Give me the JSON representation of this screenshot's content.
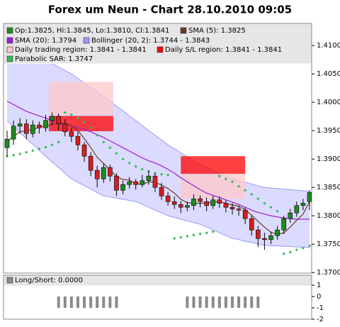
{
  "chart_data": [
    {
      "type": "candlestick",
      "title": "Forex um Neun - Chart 28.10.2010 09:05",
      "legend_label": "Op:1.3825, Hi:1.3845, Lo:1.3810, Cl:1.3841",
      "up_color": "#1f8a1f",
      "down_color": "#d42020",
      "open": [
        1.392,
        1.3935,
        1.3958,
        1.3962,
        1.3945,
        1.396,
        1.3955,
        1.3968,
        1.3975,
        1.3962,
        1.3948,
        1.394,
        1.3925,
        1.3905,
        1.388,
        1.3865,
        1.3885,
        1.387,
        1.3845,
        1.3855,
        1.386,
        1.3855,
        1.3862,
        1.387,
        1.385,
        1.3835,
        1.3825,
        1.382,
        1.3815,
        1.3818,
        1.383,
        1.3825,
        1.3818,
        1.3828,
        1.3822,
        1.3815,
        1.3812,
        1.381,
        1.3795,
        1.3775,
        1.376,
        1.3758,
        1.3765,
        1.3775,
        1.3795,
        1.3805,
        1.3818,
        1.3825
      ],
      "high": [
        1.395,
        1.3968,
        1.3972,
        1.397,
        1.3968,
        1.3966,
        1.3978,
        1.3982,
        1.398,
        1.397,
        1.3955,
        1.3948,
        1.393,
        1.3912,
        1.3888,
        1.3892,
        1.389,
        1.3875,
        1.3862,
        1.3868,
        1.3865,
        1.3872,
        1.388,
        1.3875,
        1.3858,
        1.3842,
        1.3834,
        1.3826,
        1.3825,
        1.3838,
        1.3836,
        1.3832,
        1.3835,
        1.3834,
        1.3828,
        1.3822,
        1.3818,
        1.3815,
        1.38,
        1.3782,
        1.377,
        1.3772,
        1.3782,
        1.38,
        1.3812,
        1.3825,
        1.383,
        1.3845
      ],
      "low": [
        1.3905,
        1.3925,
        1.3945,
        1.3935,
        1.3938,
        1.3945,
        1.3948,
        1.396,
        1.395,
        1.394,
        1.393,
        1.3915,
        1.3895,
        1.387,
        1.385,
        1.3858,
        1.386,
        1.3835,
        1.3838,
        1.3848,
        1.3846,
        1.385,
        1.3855,
        1.3842,
        1.3828,
        1.3818,
        1.3812,
        1.3805,
        1.3808,
        1.381,
        1.3815,
        1.3808,
        1.3812,
        1.3814,
        1.3806,
        1.3802,
        1.38,
        1.3785,
        1.3765,
        1.3745,
        1.374,
        1.375,
        1.3758,
        1.3768,
        1.3788,
        1.3798,
        1.381,
        1.381
      ],
      "close": [
        1.3935,
        1.3958,
        1.3962,
        1.3945,
        1.396,
        1.3955,
        1.3968,
        1.3975,
        1.3962,
        1.3948,
        1.394,
        1.3925,
        1.3905,
        1.388,
        1.3865,
        1.3885,
        1.387,
        1.3845,
        1.3855,
        1.386,
        1.3855,
        1.3862,
        1.387,
        1.385,
        1.3835,
        1.3825,
        1.382,
        1.3815,
        1.3818,
        1.383,
        1.3825,
        1.3818,
        1.3828,
        1.3822,
        1.3815,
        1.3812,
        1.381,
        1.3795,
        1.3775,
        1.376,
        1.3758,
        1.3765,
        1.3775,
        1.3795,
        1.3805,
        1.3818,
        1.3822,
        1.3841
      ],
      "series": [
        {
          "name": "Bollinger (20, 2): 1.3744 - 1.3843",
          "type": "band",
          "color": "#9999ff",
          "upper": [
            1.409,
            1.4088,
            1.4086,
            1.4084,
            1.4082,
            1.408,
            1.4074,
            1.4068,
            1.4062,
            1.4056,
            1.405,
            1.4042,
            1.4034,
            1.4026,
            1.4018,
            1.401,
            1.4002,
            1.3993,
            1.3985,
            1.3976,
            1.3968,
            1.3959,
            1.395,
            1.3942,
            1.3934,
            1.3925,
            1.3918,
            1.3911,
            1.3904,
            1.3897,
            1.389,
            1.3885,
            1.388,
            1.3875,
            1.387,
            1.3865,
            1.3862,
            1.3859,
            1.3856,
            1.3853,
            1.385,
            1.3849,
            1.3848,
            1.3847,
            1.3846,
            1.3845,
            1.3844,
            1.3843
          ],
          "lower": [
            1.3968,
            1.3957,
            1.3947,
            1.3936,
            1.3926,
            1.3915,
            1.3905,
            1.3895,
            1.3885,
            1.3875,
            1.3865,
            1.3859,
            1.3853,
            1.3847,
            1.3841,
            1.3835,
            1.3833,
            1.3831,
            1.3829,
            1.3827,
            1.3825,
            1.382,
            1.3815,
            1.381,
            1.3805,
            1.38,
            1.3797,
            1.3794,
            1.3791,
            1.3788,
            1.3785,
            1.378,
            1.3775,
            1.377,
            1.3765,
            1.376,
            1.3758,
            1.3755,
            1.3753,
            1.375,
            1.3748,
            1.3747,
            1.3747,
            1.3746,
            1.3746,
            1.3745,
            1.3745,
            1.3744
          ]
        },
        {
          "name": "Daily trading region: 1.3841 - 1.3841",
          "type": "region",
          "color": "#ffc8c8",
          "regions": [
            {
              "x": [
                6.5,
                16.5
              ],
              "y": [
                1.4036,
                1.3978
              ]
            },
            {
              "x": [
                27,
                37
              ],
              "y": [
                1.3874,
                1.383
              ]
            }
          ]
        },
        {
          "name": "Daily S/L region: 1.3841 - 1.3841",
          "type": "region",
          "color": "#ff0000",
          "regions": [
            {
              "x": [
                6.5,
                16.5
              ],
              "y": [
                1.3976,
                1.3949
              ]
            },
            {
              "x": [
                27,
                37
              ],
              "y": [
                1.3905,
                1.3874
              ]
            }
          ]
        },
        {
          "name": "SMA (20): 1.3794",
          "type": "line",
          "color": "#9a1fd0",
          "values": [
            1.4002,
            1.3996,
            1.399,
            1.3984,
            1.398,
            1.3976,
            1.3972,
            1.3968,
            1.3965,
            1.3962,
            1.3958,
            1.3955,
            1.3952,
            1.3948,
            1.3943,
            1.3938,
            1.3932,
            1.3926,
            1.392,
            1.3914,
            1.3908,
            1.3902,
            1.3897,
            1.3893,
            1.3888,
            1.3882,
            1.3875,
            1.3867,
            1.386,
            1.3853,
            1.3846,
            1.384,
            1.3836,
            1.3832,
            1.3828,
            1.3824,
            1.382,
            1.3815,
            1.381,
            1.3806,
            1.3803,
            1.38,
            1.3798,
            1.3796,
            1.3795,
            1.3794,
            1.3794,
            1.3794
          ]
        },
        {
          "name": "SMA (5): 1.3825",
          "type": "line",
          "color": "#6b3a1e",
          "values": [
            1.393,
            1.394,
            1.3948,
            1.395,
            1.3952,
            1.3956,
            1.3958,
            1.3961,
            1.3963,
            1.3962,
            1.3959,
            1.395,
            1.3936,
            1.392,
            1.3903,
            1.3892,
            1.3881,
            1.3869,
            1.3864,
            1.3863,
            1.3857,
            1.3855,
            1.386,
            1.3859,
            1.3854,
            1.3848,
            1.384,
            1.3829,
            1.3823,
            1.3822,
            1.3822,
            1.3823,
            1.3824,
            1.3825,
            1.3822,
            1.3819,
            1.3817,
            1.3811,
            1.3801,
            1.379,
            1.378,
            1.3771,
            1.3767,
            1.377,
            1.378,
            1.3792,
            1.3803,
            1.3825
          ]
        },
        {
          "name": "Parabolic SAR: 1.3747",
          "type": "dots",
          "color": "#33bb55",
          "values": [
            1.3905,
            1.3907,
            1.3909,
            1.3912,
            1.3915,
            1.3918,
            1.3921,
            1.3925,
            1.393,
            1.3982,
            1.3978,
            1.3972,
            1.3965,
            1.3955,
            1.3942,
            1.393,
            1.392,
            1.391,
            1.39,
            1.3893,
            1.3887,
            1.3882,
            1.3878,
            1.3875,
            1.3873,
            1.3872,
            1.376,
            1.3762,
            1.3764,
            1.3766,
            1.3768,
            1.377,
            1.3772,
            1.387,
            1.3865,
            1.386,
            1.3852,
            1.3845,
            1.3838,
            1.383,
            1.3822,
            1.3815,
            1.3808,
            1.3733,
            1.3736,
            1.374,
            1.3743,
            1.3747
          ]
        }
      ],
      "ylim": [
        1.3699,
        1.4139
      ],
      "yticks": [
        {
          "value": 1.37,
          "label": "1.3700"
        },
        {
          "value": 1.375,
          "label": "1.3750"
        },
        {
          "value": 1.38,
          "label": "1.3800"
        },
        {
          "value": 1.385,
          "label": "1.3850"
        },
        {
          "value": 1.39,
          "label": "1.3900"
        },
        {
          "value": 1.395,
          "label": "1.3950"
        },
        {
          "value": 1.4,
          "label": "1.4000"
        },
        {
          "value": 1.405,
          "label": "1.4050"
        },
        {
          "value": 1.41,
          "label": "1.4100"
        }
      ]
    },
    {
      "type": "bar",
      "name": "Long/Short: 0.0000",
      "color": "#8a8a8a",
      "values": [
        0,
        0,
        0,
        0,
        0,
        0,
        0,
        0,
        -1,
        -1,
        -1,
        -1,
        -1,
        -1,
        -1,
        -1,
        -1,
        -1,
        0,
        0,
        0,
        0,
        0,
        0,
        0,
        0,
        0,
        0,
        -1,
        -1,
        -1,
        -1,
        -1,
        -1,
        -1,
        -1,
        -1,
        -1,
        -1,
        -1,
        0,
        0,
        0,
        0,
        0,
        0,
        0,
        0
      ],
      "ylim": [
        -2,
        1.875
      ],
      "yticks": [
        -2,
        -1,
        0,
        1
      ]
    }
  ]
}
